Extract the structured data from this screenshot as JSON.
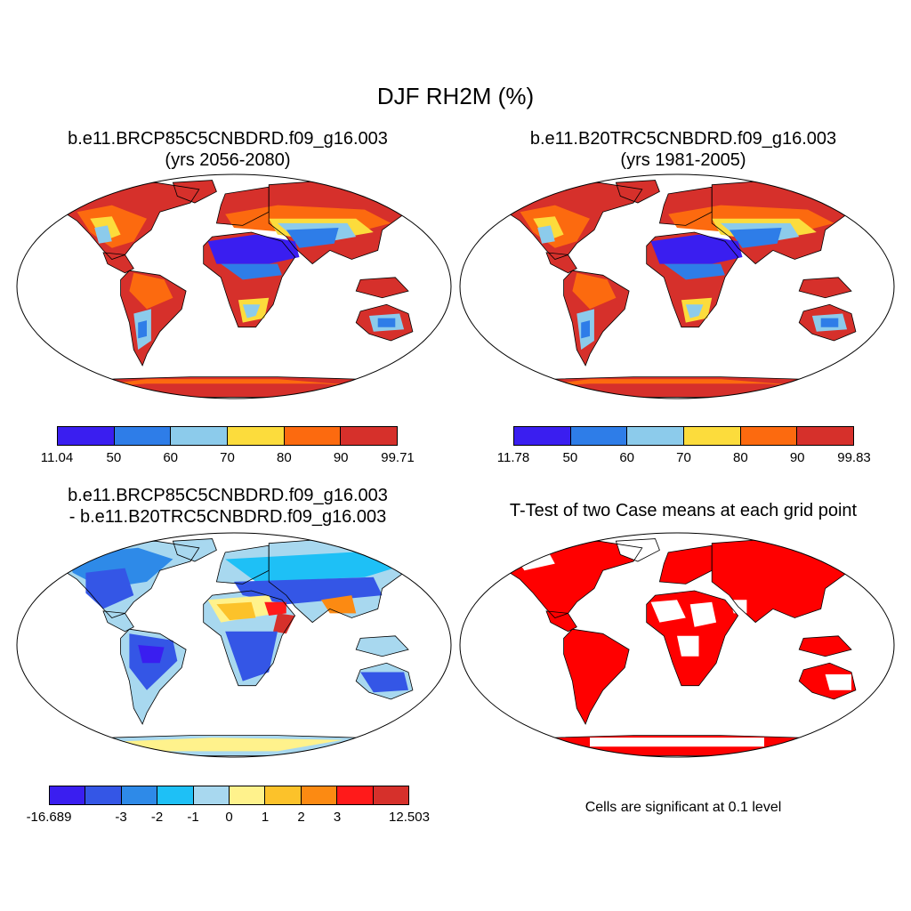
{
  "title": "DJF RH2M (%)",
  "panels": [
    {
      "title_line1": "b.e11.BRCP85C5CNBDRD.f09_g16.003",
      "title_line2": "(yrs 2056-2080)",
      "colorbar": {
        "colors": [
          "#3a1ef0",
          "#2e7de8",
          "#8ccbeb",
          "#fcdc3c",
          "#fc6a0f",
          "#d6302b"
        ],
        "labels": [
          "11.04",
          "50",
          "60",
          "70",
          "80",
          "90",
          "99.71"
        ]
      }
    },
    {
      "title_line1": "b.e11.B20TRC5CNBDRD.f09_g16.003",
      "title_line2": "(yrs 1981-2005)",
      "colorbar": {
        "colors": [
          "#3a1ef0",
          "#2e7de8",
          "#8ccbeb",
          "#fcdc3c",
          "#fc6a0f",
          "#d6302b"
        ],
        "labels": [
          "11.78",
          "50",
          "60",
          "70",
          "80",
          "90",
          "99.83"
        ]
      }
    },
    {
      "title_line1": "b.e11.BRCP85C5CNBDRD.f09_g16.003",
      "title_line2": "- b.e11.B20TRC5CNBDRD.f09_g16.003",
      "colorbar": {
        "colors": [
          "#3a1ef0",
          "#3456e6",
          "#2e8ae8",
          "#1ec0f6",
          "#a8d8ef",
          "#fff28c",
          "#fcc22a",
          "#fc8a12",
          "#ff1a1a",
          "#d6302b"
        ],
        "labels": [
          "-16.689",
          "-3",
          "-2",
          "-1",
          "0",
          "1",
          "2",
          "3",
          "12.503"
        ]
      }
    },
    {
      "title_line1": "T-Test of two Case means at each grid point",
      "note": "Cells are significant at 0.1 level",
      "color": "#ff0000"
    }
  ]
}
